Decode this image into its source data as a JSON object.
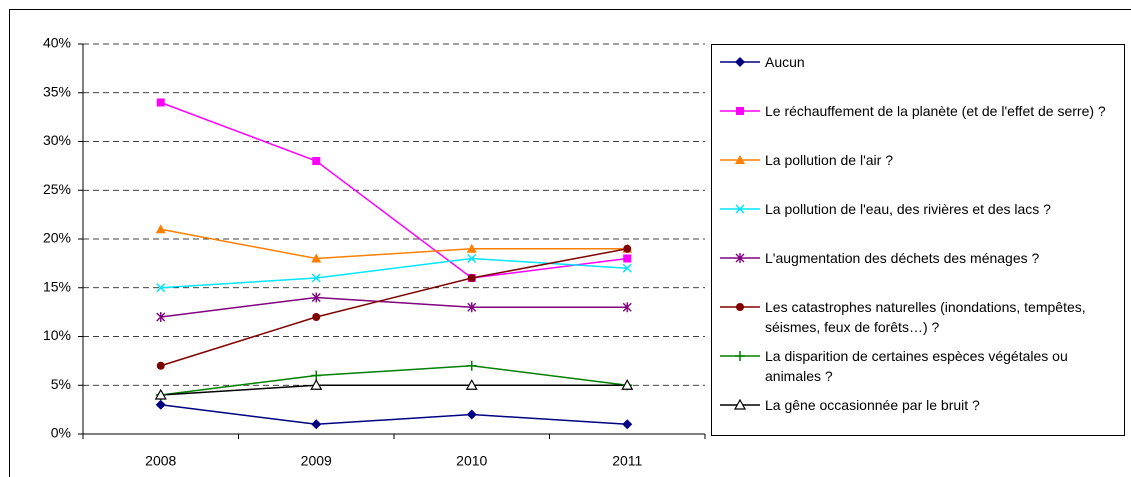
{
  "chart_data": {
    "type": "line",
    "categories": [
      "2008",
      "2009",
      "2010",
      "2011"
    ],
    "ylim": [
      0,
      40
    ],
    "yticks": [
      {
        "value": 0,
        "label": "0%"
      },
      {
        "value": 5,
        "label": "5%"
      },
      {
        "value": 10,
        "label": "10%"
      },
      {
        "value": 15,
        "label": "15%"
      },
      {
        "value": 20,
        "label": "20%"
      },
      {
        "value": 25,
        "label": "25%"
      },
      {
        "value": 30,
        "label": "30%"
      },
      {
        "value": 35,
        "label": "35%"
      },
      {
        "value": 40,
        "label": "40%"
      }
    ],
    "grid": true,
    "legend": "right",
    "series": [
      {
        "name": "Aucun",
        "color": "#000080",
        "marker": "diamond",
        "values": [
          3,
          1,
          2,
          1
        ]
      },
      {
        "name": "Le réchauffement de la planète (et de l'effet de serre) ?",
        "color": "#ff00ff",
        "marker": "square",
        "values": [
          34,
          28,
          16,
          18
        ]
      },
      {
        "name": "La pollution de l'air ?",
        "color": "#ff7f00",
        "marker": "triangle",
        "values": [
          21,
          18,
          19,
          19
        ]
      },
      {
        "name": "La pollution de l'eau, des rivières et des lacs ?",
        "color": "#00e5ff",
        "marker": "x",
        "values": [
          15,
          16,
          18,
          17
        ]
      },
      {
        "name": "L'augmentation des déchets des ménages ?",
        "color": "#800080",
        "marker": "star",
        "values": [
          12,
          14,
          13,
          13
        ]
      },
      {
        "name": "Les catastrophes naturelles (inondations, tempêtes, séismes, feux de forêts…) ?",
        "color": "#800000",
        "marker": "circle",
        "values": [
          7,
          12,
          16,
          19
        ]
      },
      {
        "name": "La disparition de certaines espèces végétales ou animales ?",
        "color": "#008000",
        "marker": "plus",
        "values": [
          4,
          6,
          7,
          5
        ]
      },
      {
        "name": "La gêne occasionnée par le bruit ?",
        "color": "#000000",
        "marker": "open-triangle",
        "values": [
          4,
          5,
          5,
          5
        ]
      }
    ]
  }
}
